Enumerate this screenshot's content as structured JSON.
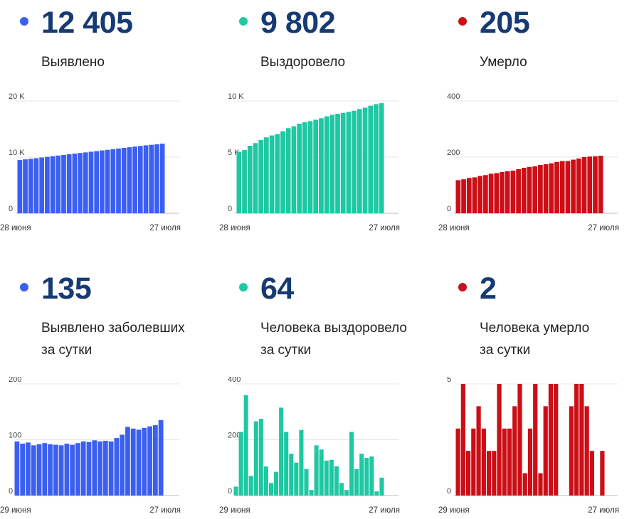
{
  "colors": {
    "blue": "#3b5ff0",
    "green": "#1ec8a2",
    "red": "#cc0e16"
  },
  "chart_data": [
    {
      "type": "bar",
      "value": "12 405",
      "label_lines": [
        "Выявлено"
      ],
      "color": "#3b5ff0",
      "x_start": "28 июня",
      "x_end": "27 июля",
      "yticks": [
        0,
        10000,
        20000
      ],
      "ytick_labels": [
        "0",
        "10 K",
        "20 K"
      ],
      "ylim": [
        0,
        20000
      ],
      "values": [
        9480,
        9600,
        9700,
        9810,
        9930,
        10040,
        10160,
        10280,
        10390,
        10510,
        10620,
        10730,
        10840,
        10960,
        11070,
        11190,
        11300,
        11420,
        11530,
        11650,
        11760,
        11880,
        11990,
        12100,
        12190,
        12300,
        12405
      ]
    },
    {
      "type": "bar",
      "value": "9 802",
      "label_lines": [
        "Выздоровело"
      ],
      "color": "#1ec8a2",
      "x_start": "28 июня",
      "x_end": "27 июля",
      "yticks": [
        0,
        5000,
        10000
      ],
      "ytick_labels": [
        "0",
        "5 K",
        "10 K"
      ],
      "ylim": [
        0,
        10000
      ],
      "values": [
        5480,
        5630,
        6010,
        6250,
        6530,
        6760,
        6930,
        7050,
        7300,
        7580,
        7750,
        7980,
        8110,
        8200,
        8330,
        8460,
        8630,
        8760,
        8860,
        8930,
        9020,
        9130,
        9280,
        9400,
        9580,
        9720,
        9802
      ]
    },
    {
      "type": "bar",
      "value": "205",
      "label_lines": [
        "Умерло"
      ],
      "color": "#cc0e16",
      "x_start": "28 июня",
      "x_end": "27 июля",
      "yticks": [
        0,
        200,
        400
      ],
      "ytick_labels": [
        "0",
        "200",
        "400"
      ],
      "ylim": [
        0,
        400
      ],
      "values": [
        118,
        121,
        126,
        128,
        133,
        136,
        141,
        143,
        147,
        150,
        152,
        157,
        162,
        165,
        167,
        172,
        175,
        178,
        183,
        186,
        186,
        191,
        195,
        200,
        202,
        203,
        205
      ]
    },
    {
      "type": "bar",
      "value": "135",
      "label_lines": [
        "Выявлено заболевших",
        "за сутки"
      ],
      "color": "#3b5ff0",
      "x_start": "29 июня",
      "x_end": "27 июля",
      "yticks": [
        0,
        100,
        200
      ],
      "ytick_labels": [
        "0",
        "100",
        "200"
      ],
      "ylim": [
        0,
        200
      ],
      "values": [
        97,
        93,
        95,
        90,
        92,
        94,
        92,
        91,
        90,
        93,
        91,
        94,
        97,
        96,
        99,
        97,
        98,
        97,
        103,
        109,
        123,
        120,
        118,
        121,
        124,
        126,
        135
      ]
    },
    {
      "type": "bar",
      "value": "64",
      "label_lines": [
        "Человека выздоровело",
        "за сутки"
      ],
      "color": "#1ec8a2",
      "x_start": "29 июня",
      "x_end": "27 июля",
      "yticks": [
        0,
        200,
        400
      ],
      "ytick_labels": [
        "0",
        "200",
        "400"
      ],
      "ylim": [
        0,
        400
      ],
      "values": [
        32,
        228,
        360,
        70,
        266,
        275,
        104,
        45,
        85,
        315,
        228,
        150,
        118,
        235,
        95,
        20,
        180,
        165,
        125,
        128,
        105,
        45,
        20,
        228,
        95,
        150,
        135,
        140,
        15,
        64
      ]
    },
    {
      "type": "bar",
      "value": "2",
      "label_lines": [
        "Человека умерло",
        "за сутки"
      ],
      "color": "#cc0e16",
      "x_start": "29 июня",
      "x_end": "27 июля",
      "yticks": [
        0,
        5
      ],
      "ytick_labels": [
        "0",
        "5"
      ],
      "ylim": [
        0,
        5
      ],
      "values": [
        3,
        5,
        2,
        3,
        4,
        3,
        2,
        2,
        5,
        3,
        3,
        4,
        5,
        1,
        3,
        5,
        1,
        4,
        5,
        5,
        0,
        0,
        4,
        5,
        5,
        4,
        2,
        0,
        2
      ]
    }
  ]
}
